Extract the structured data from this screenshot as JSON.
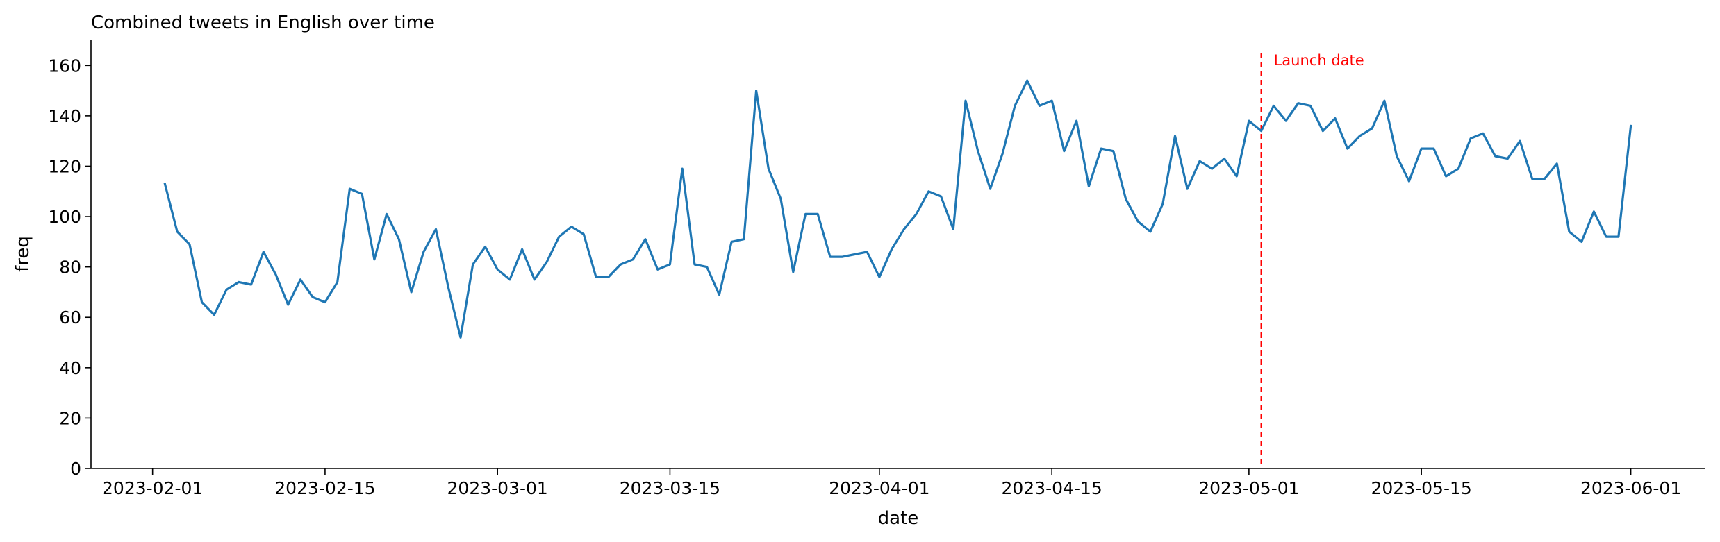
{
  "chart_data": {
    "type": "line",
    "title": "Combined tweets in English over time",
    "xlabel": "date",
    "ylabel": "freq",
    "xlim": [
      "2023-01-27",
      "2023-06-07"
    ],
    "ylim": [
      0,
      170
    ],
    "grid": false,
    "x_ticks": [
      "2023-02-01",
      "2023-02-15",
      "2023-03-01",
      "2023-03-15",
      "2023-04-01",
      "2023-04-15",
      "2023-05-01",
      "2023-05-15",
      "2023-06-01"
    ],
    "y_ticks": [
      0,
      20,
      40,
      60,
      80,
      100,
      120,
      140,
      160
    ],
    "series": [
      {
        "color": "#1f77b4",
        "x": [
          "2023-02-02",
          "2023-02-03",
          "2023-02-04",
          "2023-02-05",
          "2023-02-06",
          "2023-02-07",
          "2023-02-08",
          "2023-02-09",
          "2023-02-10",
          "2023-02-11",
          "2023-02-12",
          "2023-02-13",
          "2023-02-14",
          "2023-02-15",
          "2023-02-16",
          "2023-02-17",
          "2023-02-18",
          "2023-02-19",
          "2023-02-20",
          "2023-02-21",
          "2023-02-22",
          "2023-02-23",
          "2023-02-24",
          "2023-02-25",
          "2023-02-26",
          "2023-02-27",
          "2023-02-28",
          "2023-03-01",
          "2023-03-02",
          "2023-03-03",
          "2023-03-04",
          "2023-03-05",
          "2023-03-06",
          "2023-03-07",
          "2023-03-08",
          "2023-03-09",
          "2023-03-10",
          "2023-03-11",
          "2023-03-12",
          "2023-03-13",
          "2023-03-14",
          "2023-03-15",
          "2023-03-16",
          "2023-03-17",
          "2023-03-18",
          "2023-03-19",
          "2023-03-20",
          "2023-03-21",
          "2023-03-22",
          "2023-03-23",
          "2023-03-24",
          "2023-03-25",
          "2023-03-26",
          "2023-03-27",
          "2023-03-28",
          "2023-03-29",
          "2023-03-30",
          "2023-03-31",
          "2023-04-01",
          "2023-04-02",
          "2023-04-03",
          "2023-04-04",
          "2023-04-05",
          "2023-04-06",
          "2023-04-07",
          "2023-04-08",
          "2023-04-09",
          "2023-04-10",
          "2023-04-11",
          "2023-04-12",
          "2023-04-13",
          "2023-04-14",
          "2023-04-15",
          "2023-04-16",
          "2023-04-17",
          "2023-04-18",
          "2023-04-19",
          "2023-04-20",
          "2023-04-21",
          "2023-04-22",
          "2023-04-23",
          "2023-04-24",
          "2023-04-25",
          "2023-04-26",
          "2023-04-27",
          "2023-04-28",
          "2023-04-29",
          "2023-04-30",
          "2023-05-01",
          "2023-05-02",
          "2023-05-03",
          "2023-05-04",
          "2023-05-05",
          "2023-05-06",
          "2023-05-07",
          "2023-05-08",
          "2023-05-09",
          "2023-05-10",
          "2023-05-11",
          "2023-05-12",
          "2023-05-13",
          "2023-05-14",
          "2023-05-15",
          "2023-05-16",
          "2023-05-17",
          "2023-05-18",
          "2023-05-19",
          "2023-05-20",
          "2023-05-21",
          "2023-05-22",
          "2023-05-23",
          "2023-05-24",
          "2023-05-25",
          "2023-05-26",
          "2023-05-27",
          "2023-05-28",
          "2023-05-29",
          "2023-05-30",
          "2023-05-31",
          "2023-06-01"
        ],
        "values": [
          113,
          94,
          89,
          66,
          61,
          71,
          74,
          73,
          86,
          77,
          65,
          75,
          68,
          66,
          74,
          111,
          109,
          83,
          101,
          91,
          70,
          86,
          95,
          72,
          52,
          81,
          88,
          79,
          75,
          87,
          75,
          82,
          92,
          96,
          93,
          76,
          76,
          81,
          83,
          91,
          79,
          81,
          119,
          81,
          80,
          69,
          90,
          91,
          150,
          119,
          107,
          78,
          101,
          101,
          84,
          84,
          85,
          86,
          76,
          87,
          95,
          101,
          110,
          108,
          95,
          146,
          126,
          111,
          125,
          144,
          154,
          144,
          146,
          126,
          138,
          112,
          127,
          126,
          107,
          98,
          94,
          105,
          132,
          111,
          122,
          119,
          123,
          116,
          138,
          134,
          144,
          138,
          145,
          144,
          134,
          139,
          127,
          132,
          135,
          146,
          124,
          114,
          127,
          127,
          116,
          119,
          131,
          133,
          124,
          123,
          130,
          115,
          115,
          121,
          94,
          90,
          102,
          92,
          92,
          136
        ]
      }
    ],
    "annotations": [
      {
        "type": "vline",
        "x": "2023-05-02",
        "style": "dashed",
        "color": "#ff0000",
        "label": "Launch date"
      }
    ]
  }
}
